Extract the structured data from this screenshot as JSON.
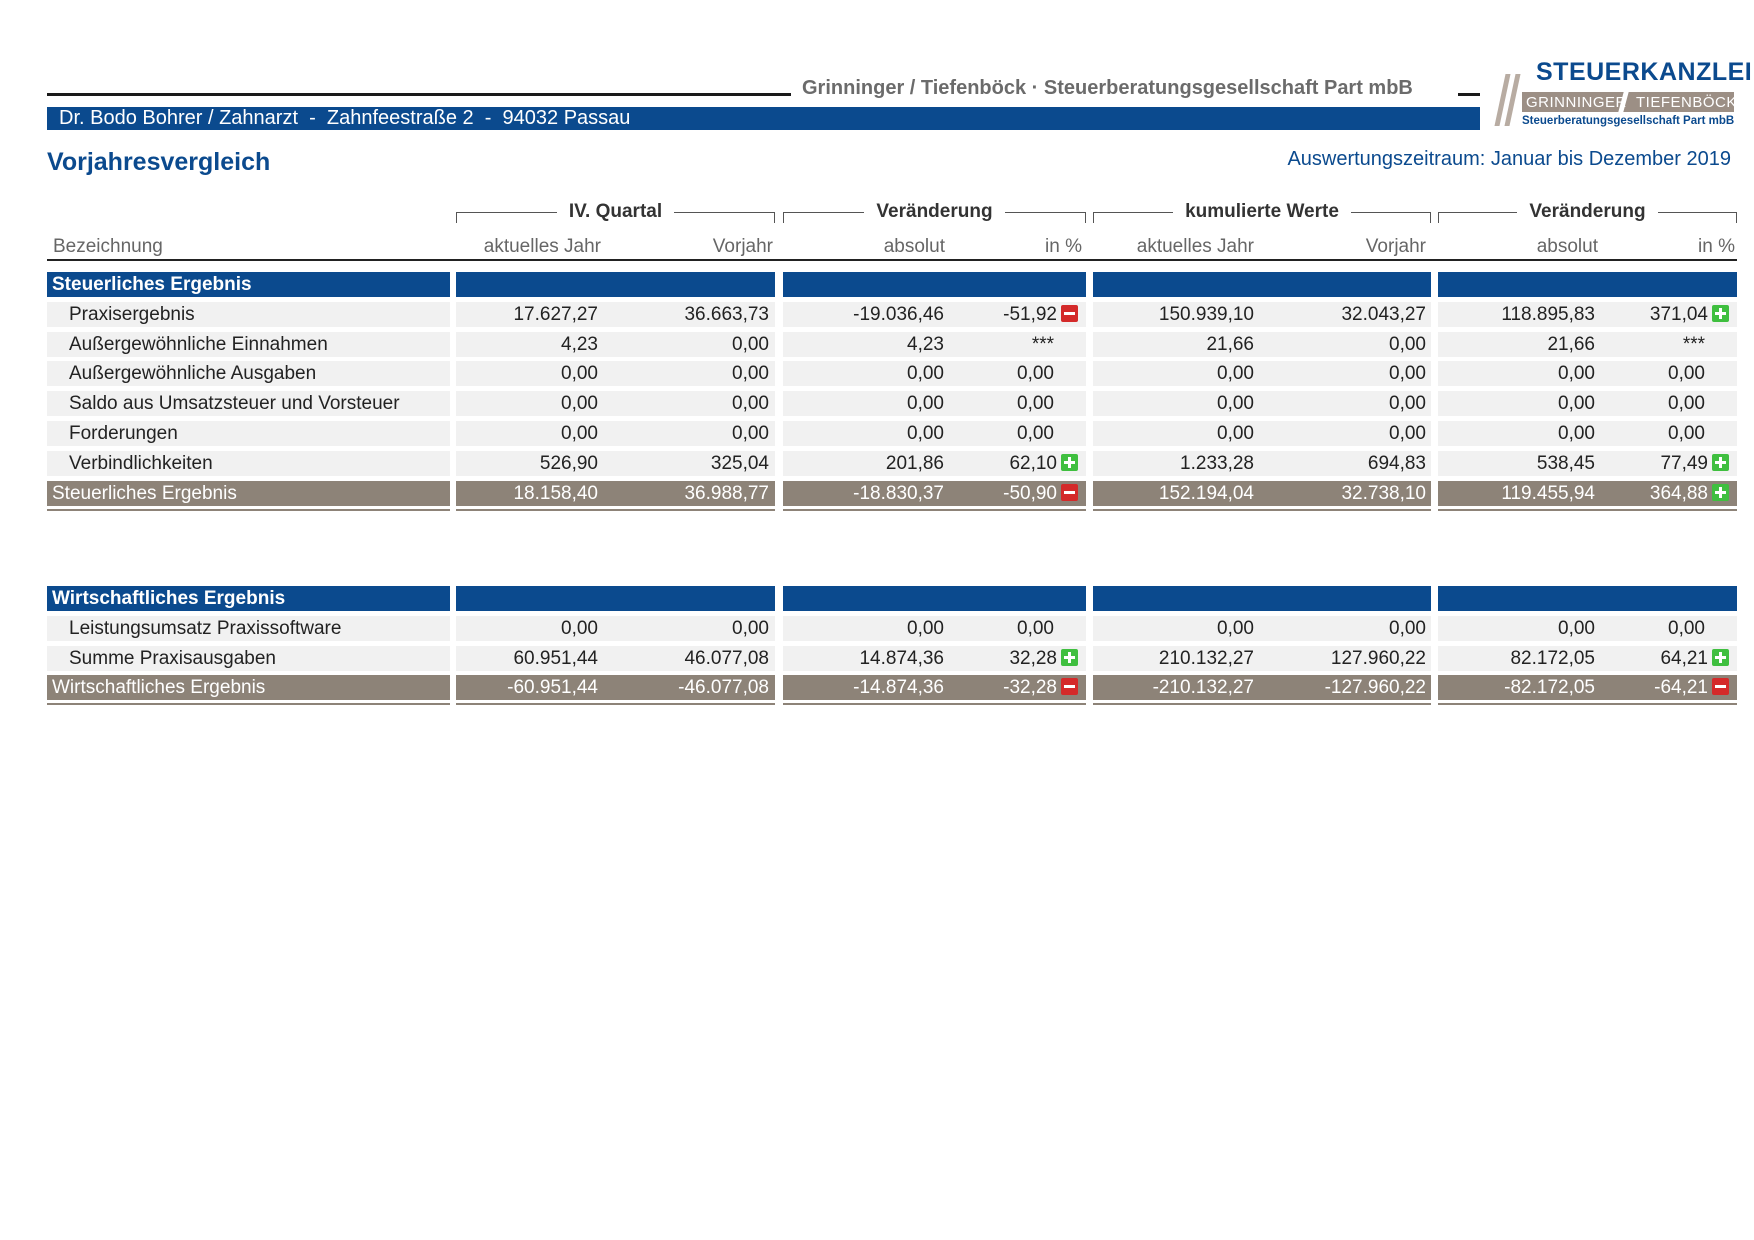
{
  "header": {
    "firm": "Grinninger / Tiefenböck · Steuerberatungsgesellschaft Part mbB",
    "client": "Dr. Bodo Bohrer / Zahnarzt  -  Zahnfeestraße 2  -  94032 Passau",
    "logo": {
      "title": "STEUERKANZLEI",
      "name1": "GRINNINGER",
      "name2": "TIEFENBÖCK",
      "subtitle": "Steuerberatungsgesellschaft Part mbB"
    },
    "title": "Vorjahresvergleich",
    "period": "Auswertungszeitraum: Januar bis Dezember 2019"
  },
  "columns": {
    "groups": [
      "IV. Quartal",
      "Veränderung",
      "kumulierte Werte",
      "Veränderung"
    ],
    "label": "Bezeichnung",
    "sub": [
      "aktuelles Jahr",
      "Vorjahr",
      "absolut",
      "in %",
      "aktuelles Jahr",
      "Vorjahr",
      "absolut",
      "in %"
    ]
  },
  "colors": {
    "primary": "#0b4a8e",
    "total": "#8d8378",
    "up": "#3fbf3f",
    "down": "#d42a2a"
  },
  "sections": [
    {
      "title": "Steuerliches Ergebnis",
      "rows": [
        {
          "label": "Praxisergebnis",
          "q_cur": "17.627,27",
          "q_prev": "36.663,73",
          "q_abs": "-19.036,46",
          "q_pct": "-51,92",
          "q_ind": "down",
          "k_cur": "150.939,10",
          "k_prev": "32.043,27",
          "k_abs": "118.895,83",
          "k_pct": "371,04",
          "k_ind": "up"
        },
        {
          "label": "Außergewöhnliche Einnahmen",
          "q_cur": "4,23",
          "q_prev": "0,00",
          "q_abs": "4,23",
          "q_pct": "***",
          "q_ind": "",
          "k_cur": "21,66",
          "k_prev": "0,00",
          "k_abs": "21,66",
          "k_pct": "***",
          "k_ind": ""
        },
        {
          "label": "Außergewöhnliche Ausgaben",
          "q_cur": "0,00",
          "q_prev": "0,00",
          "q_abs": "0,00",
          "q_pct": "0,00",
          "q_ind": "",
          "k_cur": "0,00",
          "k_prev": "0,00",
          "k_abs": "0,00",
          "k_pct": "0,00",
          "k_ind": ""
        },
        {
          "label": "Saldo aus Umsatzsteuer und Vorsteuer",
          "q_cur": "0,00",
          "q_prev": "0,00",
          "q_abs": "0,00",
          "q_pct": "0,00",
          "q_ind": "",
          "k_cur": "0,00",
          "k_prev": "0,00",
          "k_abs": "0,00",
          "k_pct": "0,00",
          "k_ind": ""
        },
        {
          "label": "Forderungen",
          "q_cur": "0,00",
          "q_prev": "0,00",
          "q_abs": "0,00",
          "q_pct": "0,00",
          "q_ind": "",
          "k_cur": "0,00",
          "k_prev": "0,00",
          "k_abs": "0,00",
          "k_pct": "0,00",
          "k_ind": ""
        },
        {
          "label": "Verbindlichkeiten",
          "q_cur": "526,90",
          "q_prev": "325,04",
          "q_abs": "201,86",
          "q_pct": "62,10",
          "q_ind": "up",
          "k_cur": "1.233,28",
          "k_prev": "694,83",
          "k_abs": "538,45",
          "k_pct": "77,49",
          "k_ind": "up"
        }
      ],
      "total": {
        "label": "Steuerliches Ergebnis",
        "q_cur": "18.158,40",
        "q_prev": "36.988,77",
        "q_abs": "-18.830,37",
        "q_pct": "-50,90",
        "q_ind": "down",
        "k_cur": "152.194,04",
        "k_prev": "32.738,10",
        "k_abs": "119.455,94",
        "k_pct": "364,88",
        "k_ind": "up"
      }
    },
    {
      "title": "Wirtschaftliches Ergebnis",
      "rows": [
        {
          "label": "Leistungsumsatz Praxissoftware",
          "q_cur": "0,00",
          "q_prev": "0,00",
          "q_abs": "0,00",
          "q_pct": "0,00",
          "q_ind": "",
          "k_cur": "0,00",
          "k_prev": "0,00",
          "k_abs": "0,00",
          "k_pct": "0,00",
          "k_ind": ""
        },
        {
          "label": "Summe Praxisausgaben",
          "q_cur": "60.951,44",
          "q_prev": "46.077,08",
          "q_abs": "14.874,36",
          "q_pct": "32,28",
          "q_ind": "up",
          "k_cur": "210.132,27",
          "k_prev": "127.960,22",
          "k_abs": "82.172,05",
          "k_pct": "64,21",
          "k_ind": "up"
        }
      ],
      "total": {
        "label": "Wirtschaftliches Ergebnis",
        "q_cur": "-60.951,44",
        "q_prev": "-46.077,08",
        "q_abs": "-14.874,36",
        "q_pct": "-32,28",
        "q_ind": "down",
        "k_cur": "-210.132,27",
        "k_prev": "-127.960,22",
        "k_abs": "-82.172,05",
        "k_pct": "-64,21",
        "k_ind": "down"
      }
    }
  ]
}
